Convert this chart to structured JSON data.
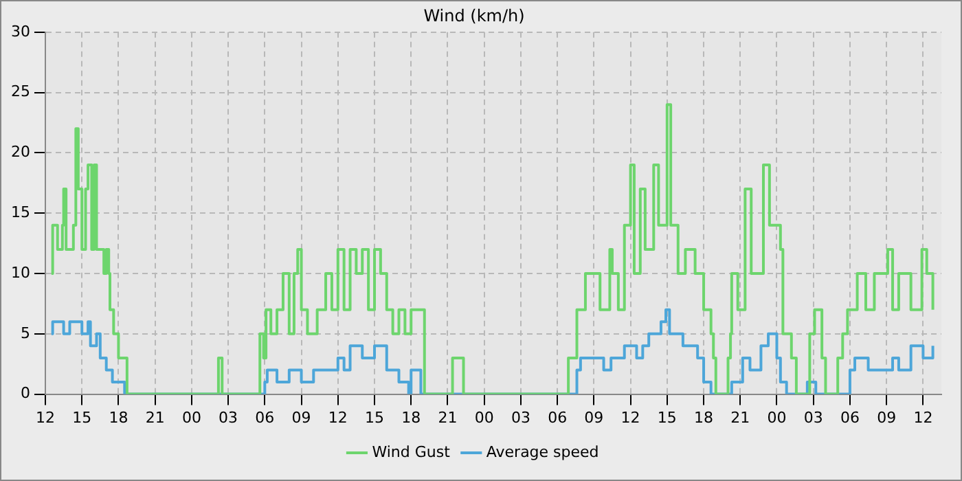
{
  "chart_data": {
    "type": "step",
    "title": "Wind (km/h)",
    "xlim": [
      12,
      85.5
    ],
    "xticks": [
      12,
      15,
      18,
      21,
      {
        "value": 24,
        "label": "00"
      },
      {
        "value": 27,
        "label": "03"
      },
      {
        "value": 30,
        "label": "06"
      },
      {
        "value": 33,
        "label": "09"
      },
      {
        "value": 36,
        "label": "12"
      },
      {
        "value": 39,
        "label": "15"
      },
      {
        "value": 42,
        "label": "18"
      },
      {
        "value": 45,
        "label": "21"
      },
      {
        "value": 48,
        "label": "00"
      },
      {
        "value": 51,
        "label": "03"
      },
      {
        "value": 54,
        "label": "06"
      },
      {
        "value": 57,
        "label": "09"
      },
      {
        "value": 60,
        "label": "12"
      },
      {
        "value": 63,
        "label": "15"
      },
      {
        "value": 66,
        "label": "18"
      },
      {
        "value": 69,
        "label": "21"
      },
      {
        "value": 72,
        "label": "00"
      },
      {
        "value": 75,
        "label": "03"
      },
      {
        "value": 78,
        "label": "06"
      },
      {
        "value": 81,
        "label": "09"
      },
      {
        "value": 84,
        "label": "12"
      }
    ],
    "ylim": [
      0,
      30
    ],
    "yticks": [
      0,
      5,
      10,
      15,
      20,
      25,
      30
    ],
    "grid": true,
    "legend": "bottom",
    "series": [
      {
        "name": "Wind Gust",
        "color": "#6dd56d",
        "x": [
          12.5,
          12.6,
          13.0,
          13.4,
          13.5,
          13.7,
          14.3,
          14.5,
          14.7,
          15.0,
          15.3,
          15.5,
          15.8,
          16.0,
          16.2,
          16.8,
          17.0,
          17.2,
          17.3,
          17.6,
          18.0,
          18.7,
          26.2,
          26.5,
          29.6,
          29.9,
          30.1,
          30.5,
          31.0,
          31.5,
          32.0,
          32.4,
          32.7,
          33.0,
          33.5,
          34.3,
          35.0,
          35.5,
          36.0,
          36.5,
          37.0,
          37.5,
          38.0,
          38.5,
          39.0,
          39.5,
          40.0,
          40.5,
          41.0,
          41.5,
          42.0,
          43.1,
          45.4,
          46.3,
          54.9,
          55.6,
          56.3,
          57.5,
          58.3,
          58.5,
          59.0,
          59.5,
          60.0,
          60.3,
          60.8,
          61.2,
          61.9,
          62.3,
          63.0,
          63.3,
          63.9,
          64.5,
          65.3,
          66.0,
          66.6,
          66.8,
          67.0,
          68.0,
          68.2,
          68.3,
          68.8,
          69.4,
          69.9,
          70.9,
          71.4,
          72.3,
          72.5,
          73.2,
          73.6,
          74.7,
          75.1,
          75.7,
          76.0,
          77.0,
          77.4,
          77.8,
          78.6,
          79.3,
          80.0,
          81.1,
          81.5,
          82.0,
          83.0,
          83.9,
          84.3,
          84.8
        ],
        "values": [
          10,
          14,
          12,
          14,
          17,
          12,
          14,
          22,
          17,
          12,
          17,
          19,
          12,
          19,
          12,
          10,
          12,
          10,
          7,
          5,
          3,
          0,
          3,
          0,
          5,
          3,
          7,
          5,
          7,
          10,
          5,
          10,
          12,
          7,
          5,
          7,
          10,
          7,
          12,
          7,
          12,
          10,
          12,
          7,
          12,
          10,
          7,
          5,
          7,
          5,
          7,
          0,
          3,
          0,
          3,
          7,
          10,
          7,
          12,
          10,
          7,
          14,
          19,
          10,
          17,
          12,
          19,
          14,
          24,
          14,
          10,
          12,
          10,
          7,
          5,
          3,
          0,
          3,
          5,
          10,
          7,
          17,
          10,
          19,
          14,
          12,
          5,
          3,
          0,
          5,
          7,
          3,
          0,
          3,
          5,
          7,
          10,
          7,
          10,
          12,
          7,
          10,
          7,
          12,
          10,
          7
        ]
      },
      {
        "name": "Average speed",
        "color": "#4da6d9",
        "x": [
          12.5,
          12.6,
          13.5,
          14.0,
          15.0,
          15.5,
          15.7,
          16.2,
          16.5,
          17.0,
          17.5,
          18.5,
          30.0,
          30.2,
          31.0,
          32.0,
          33.0,
          34.0,
          36.0,
          36.5,
          37.0,
          38.0,
          39.0,
          40.0,
          41.0,
          41.8,
          42.0,
          42.8,
          55.6,
          55.9,
          57.8,
          58.4,
          59.5,
          60.5,
          61.0,
          61.5,
          62.5,
          62.9,
          63.2,
          64.3,
          65.5,
          66.0,
          66.6,
          68.3,
          69.2,
          69.8,
          70.7,
          71.3,
          72.0,
          72.3,
          72.8,
          74.5,
          75.2,
          78.0,
          78.4,
          79.5,
          81.5,
          82.0,
          83.0,
          84.0,
          84.8
        ],
        "values": [
          5,
          6,
          5,
          6,
          5,
          6,
          4,
          5,
          3,
          2,
          1,
          0,
          1,
          2,
          1,
          2,
          1,
          2,
          3,
          2,
          4,
          3,
          4,
          2,
          1,
          0,
          2,
          0,
          2,
          3,
          2,
          3,
          4,
          3,
          4,
          5,
          6,
          7,
          5,
          4,
          3,
          1,
          0,
          1,
          3,
          2,
          4,
          5,
          3,
          1,
          0,
          1,
          0,
          2,
          3,
          2,
          3,
          2,
          4,
          3,
          4
        ]
      }
    ]
  }
}
